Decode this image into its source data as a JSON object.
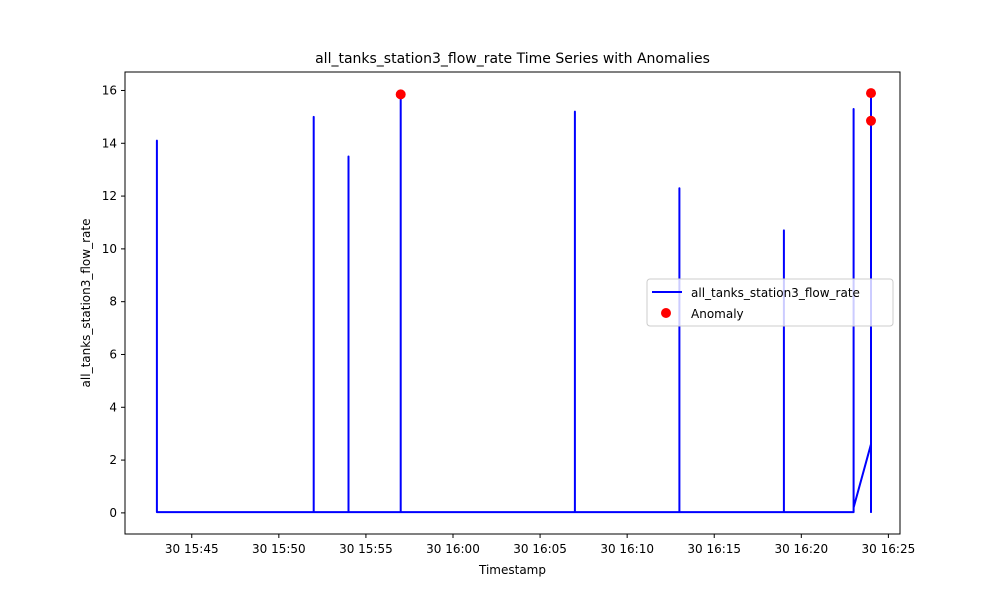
{
  "chart_data": {
    "type": "line",
    "title": "all_tanks_station3_flow_rate Time Series with Anomalies",
    "xlabel": "Timestamp",
    "ylabel": "all_tanks_station3_flow_rate",
    "x_ticks": [
      "30 15:45",
      "30 15:50",
      "30 15:55",
      "30 16:00",
      "30 16:05",
      "30 16:10",
      "30 16:15",
      "30 16:20",
      "30 16:25"
    ],
    "y_ticks": [
      0,
      2,
      4,
      6,
      8,
      10,
      12,
      14,
      16
    ],
    "xlim": [
      "15:41:10",
      "16:25:40"
    ],
    "ylim": [
      -0.8,
      16.7
    ],
    "grid": false,
    "legend_position": "center-right",
    "series": [
      {
        "name": "all_tanks_station3_flow_rate",
        "color": "#0000ff",
        "x": [
          "15:43:00",
          "15:43:00",
          "15:43:00",
          "15:43:00",
          "15:52:00",
          "15:52:00",
          "15:52:00",
          "15:54:00",
          "15:54:00",
          "15:54:00",
          "15:57:00",
          "15:57:00",
          "15:57:00",
          "16:07:00",
          "16:07:00",
          "16:07:00",
          "16:13:00",
          "16:13:00",
          "16:13:00",
          "16:19:00",
          "16:19:00",
          "16:19:00",
          "16:23:00",
          "16:23:00",
          "16:23:00",
          "16:24:00",
          "16:24:00",
          "16:24:00"
        ],
        "y": [
          0.03,
          14.1,
          0.03,
          0.03,
          0.03,
          15.0,
          0.03,
          0.03,
          13.5,
          0.03,
          0.03,
          15.9,
          0.03,
          0.03,
          15.2,
          0.03,
          0.03,
          12.3,
          0.03,
          0.03,
          10.7,
          0.03,
          0.03,
          15.3,
          0.2,
          2.6,
          16.0,
          0.0
        ]
      }
    ],
    "anomalies": {
      "name": "Anomaly",
      "color": "#ff0000",
      "x": [
        "15:57:00",
        "16:24:00",
        "16:24:00"
      ],
      "y": [
        15.85,
        15.9,
        14.85
      ]
    }
  }
}
